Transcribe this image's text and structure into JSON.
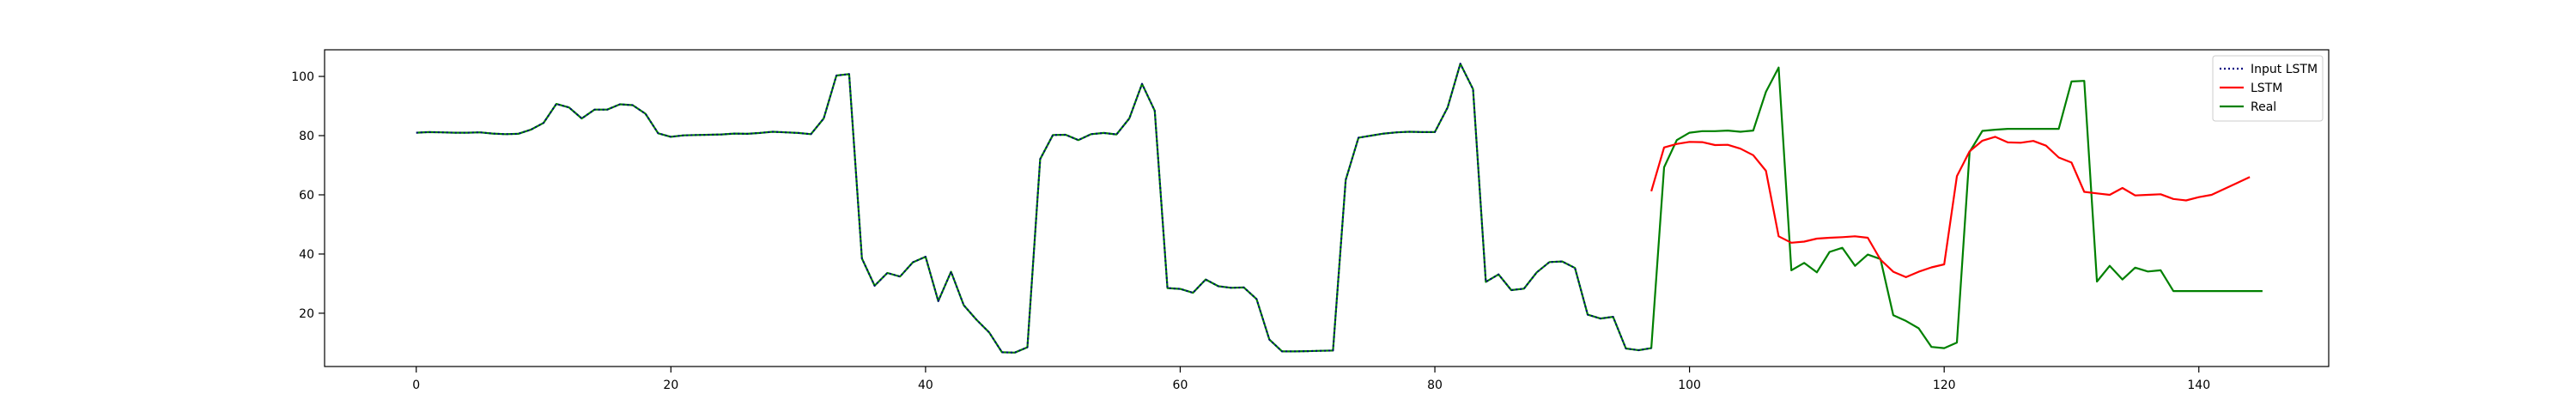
{
  "chart_data": {
    "type": "line",
    "title": "",
    "xlabel": "",
    "ylabel": "",
    "xlim": [
      -7.2,
      150.2
    ],
    "ylim": [
      2.0,
      109.0
    ],
    "xticks": [
      0,
      20,
      40,
      60,
      80,
      100,
      120,
      140
    ],
    "yticks": [
      20,
      40,
      60,
      80,
      100
    ],
    "grid": false,
    "legend_position": "top-right",
    "series": [
      {
        "name": "Input LSTM",
        "color": "#000080",
        "style": "dotted",
        "x_start": 0,
        "values": [
          81,
          81.2,
          81.1,
          81,
          81,
          81.1,
          80.7,
          80.5,
          80.6,
          82,
          84.3,
          90.7,
          89.5,
          85.8,
          88.8,
          88.8,
          90.6,
          90.3,
          87.4,
          80.8,
          79.6,
          80.1,
          80.2,
          80.3,
          80.4,
          80.7,
          80.6,
          80.9,
          81.3,
          81.1,
          80.9,
          80.5,
          85.8,
          100.3,
          100.8,
          38.5,
          29.3,
          33.6,
          32.4,
          37.2,
          39.1,
          24.1,
          34,
          22.7,
          17.8,
          13.5,
          6.8,
          6.7,
          8.5,
          72.1,
          80.2,
          80.3,
          78.5,
          80.5,
          80.9,
          80.4,
          85.8,
          97.5,
          88.4,
          28.5,
          28.2,
          26.9,
          31.4,
          29.1,
          28.6,
          28.7,
          24.8,
          11.1,
          7.1,
          7.1,
          7.2,
          7.3,
          7.4,
          65,
          79.3,
          80,
          80.7,
          81.1,
          81.3,
          81.2,
          81.2,
          89.5,
          104.3,
          95.7,
          30.6,
          33.1,
          27.8,
          28.3,
          33.8,
          37.3,
          37.5,
          35.3,
          19.5,
          18.2,
          18.8,
          8.1,
          7.5,
          8.2
        ]
      },
      {
        "name": "LSTM",
        "color": "#ff0000",
        "style": "solid",
        "x_start": 97,
        "values": [
          61.2,
          76,
          77.2,
          77.9,
          77.8,
          76.8,
          76.9,
          75.6,
          73.4,
          68.1,
          46,
          43.8,
          44.2,
          45.2,
          45.5,
          45.7,
          46,
          45.5,
          38.1,
          34,
          32.2,
          34,
          35.5,
          36.5,
          66.3,
          74.7,
          78.3,
          79.6,
          77.7,
          77.6,
          78.2,
          76.6,
          72.6,
          70.9,
          61,
          60.5,
          60,
          62.3,
          59.8,
          60,
          60.2,
          58.6,
          58.1,
          59.2,
          60,
          62,
          64,
          66
        ]
      },
      {
        "name": "Real",
        "color": "#008000",
        "style": "solid",
        "x_start": 0,
        "values": [
          81,
          81.2,
          81.1,
          81,
          81,
          81.1,
          80.7,
          80.5,
          80.6,
          82,
          84.3,
          90.7,
          89.5,
          85.8,
          88.8,
          88.8,
          90.6,
          90.3,
          87.4,
          80.8,
          79.6,
          80.1,
          80.2,
          80.3,
          80.4,
          80.7,
          80.6,
          80.9,
          81.3,
          81.1,
          80.9,
          80.5,
          85.8,
          100.3,
          100.8,
          38.5,
          29.3,
          33.6,
          32.4,
          37.2,
          39.1,
          24.1,
          34,
          22.7,
          17.8,
          13.5,
          6.8,
          6.7,
          8.5,
          72.1,
          80.2,
          80.3,
          78.5,
          80.5,
          80.9,
          80.4,
          85.8,
          97.5,
          88.4,
          28.5,
          28.2,
          26.9,
          31.4,
          29.1,
          28.6,
          28.7,
          24.8,
          11.1,
          7.1,
          7.1,
          7.2,
          7.3,
          7.4,
          65,
          79.3,
          80,
          80.7,
          81.1,
          81.3,
          81.2,
          81.2,
          89.5,
          104.3,
          95.7,
          30.6,
          33.1,
          27.8,
          28.3,
          33.8,
          37.3,
          37.5,
          35.3,
          19.5,
          18.2,
          18.8,
          8.1,
          7.5,
          8.2,
          69.3,
          78.5,
          81,
          81.5,
          81.5,
          81.7,
          81.3,
          81.7,
          94.8,
          103,
          34.5,
          37,
          33.8,
          40.7,
          42.1,
          36,
          39.8,
          38.3,
          19.3,
          17.4,
          14.9,
          8.6,
          8.2,
          10.1,
          74.5,
          81.6,
          82,
          82.3,
          82.3,
          82.3,
          82.3,
          82.3,
          98.3,
          98.5,
          30.7,
          36,
          31.4,
          35.4,
          34.1,
          34.5,
          27.5,
          27.5,
          27.5,
          27.5,
          27.5,
          27.5,
          27.5,
          27.5
        ]
      }
    ]
  }
}
